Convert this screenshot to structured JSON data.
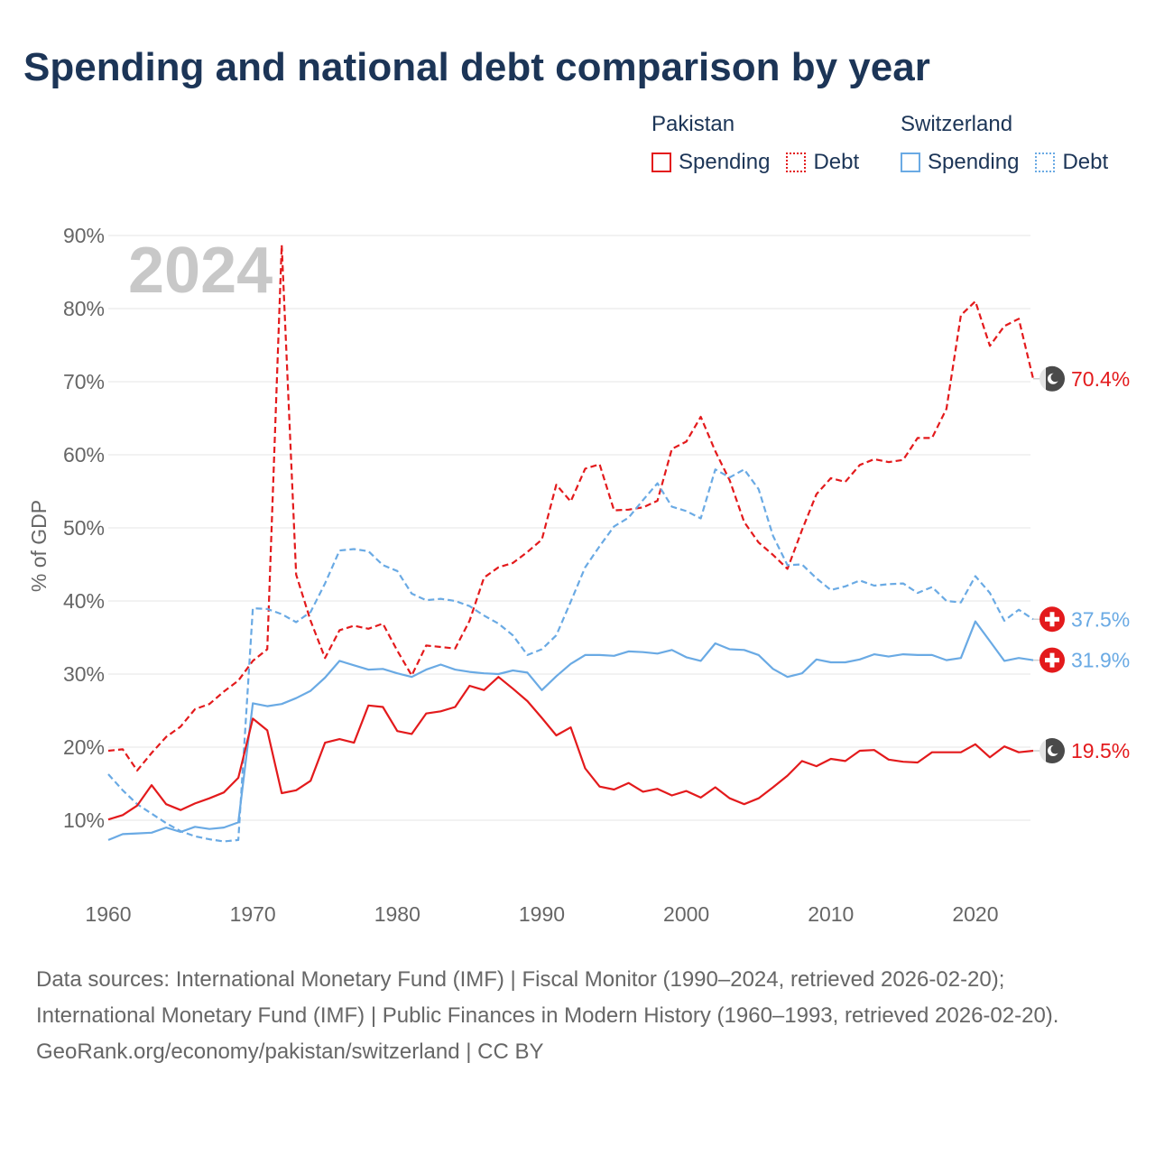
{
  "title": "Spending and national debt comparison by year",
  "legend": {
    "groups": [
      {
        "country": "Pakistan",
        "spending_label": "Spending",
        "debt_label": "Debt"
      },
      {
        "country": "Switzerland",
        "spending_label": "Spending",
        "debt_label": "Debt"
      }
    ]
  },
  "footer": {
    "sources": "Data sources: International Monetary Fund (IMF) | Fiscal Monitor (1990–2024, retrieved 2026-02-20); International Monetary Fund (IMF) | Public Finances in Modern History (1960–1993, retrieved 2026-02-20).",
    "credit": "GeoRank.org/economy/pakistan/switzerland | CC BY"
  },
  "colors": {
    "pakistan": "#e31a1c",
    "switzerland": "#6aaae4",
    "grid": "#e6e6e6",
    "axis_text": "#666666",
    "year_watermark": "#c8c8c8"
  },
  "chart_data": {
    "type": "line",
    "year_label": "2024",
    "ylabel": "% of GDP",
    "xlim": [
      1960,
      2024
    ],
    "ylim": [
      0,
      90
    ],
    "x_ticks": [
      1960,
      1970,
      1980,
      1990,
      2000,
      2010,
      2020
    ],
    "y_ticks": [
      10,
      20,
      30,
      40,
      50,
      60,
      70,
      80,
      90
    ],
    "y_tick_labels": [
      "10%",
      "20%",
      "30%",
      "40%",
      "50%",
      "60%",
      "70%",
      "80%",
      "90%"
    ],
    "x_start": 1960,
    "series": [
      {
        "name": "Pakistan Debt",
        "country": "Pakistan",
        "metric": "Debt",
        "color": "#e31a1c",
        "dashed": true,
        "flag": "pakistan-flag-icon",
        "end_label": "70.4%",
        "values": [
          19.5,
          19.7,
          16.8,
          19.2,
          21.4,
          22.8,
          25.2,
          25.9,
          27.6,
          29.1,
          31.8,
          33.4,
          88.7,
          43.6,
          37.3,
          32.2,
          36,
          36.6,
          36.2,
          36.9,
          33.2,
          29.8,
          33.9,
          33.7,
          33.5,
          37.3,
          43.2,
          44.6,
          45.2,
          46.7,
          48.4,
          55.9,
          53.6,
          58.1,
          58.7,
          52.4,
          52.5,
          52.8,
          53.7,
          60.8,
          61.8,
          65.2,
          60.5,
          56.5,
          50.8,
          48,
          46.3,
          44.4,
          49.7,
          54.6,
          56.8,
          56.3,
          58.6,
          59.4,
          59,
          59.3,
          62.3,
          62.3,
          66.3,
          79.1,
          81,
          74.9,
          77.6,
          78.6,
          70.4
        ]
      },
      {
        "name": "Switzerland Debt",
        "country": "Switzerland",
        "metric": "Debt",
        "color": "#6aaae4",
        "dashed": true,
        "flag": "switzerland-flag-icon",
        "end_label": "37.5%",
        "values": [
          16.3,
          14.1,
          12.2,
          10.9,
          9.6,
          8.5,
          7.8,
          7.4,
          7.1,
          7.3,
          39,
          38.9,
          38.2,
          37.1,
          38.5,
          42.4,
          46.9,
          47.1,
          46.8,
          44.9,
          44.1,
          41,
          40.1,
          40.3,
          40,
          39.3,
          38,
          36.9,
          35.3,
          32.6,
          33.4,
          35.3,
          39.9,
          44.6,
          47.5,
          50.2,
          51.4,
          53.8,
          56.1,
          52.9,
          52.3,
          51.3,
          58,
          56.9,
          58,
          55.3,
          48.9,
          44.9,
          45,
          43.1,
          41.5,
          42,
          42.8,
          42.1,
          42.3,
          42.4,
          41.1,
          41.9,
          40,
          39.8,
          43.4,
          41.1,
          37.3,
          38.8,
          37.5
        ]
      },
      {
        "name": "Switzerland Spending",
        "country": "Switzerland",
        "metric": "Spending",
        "color": "#6aaae4",
        "dashed": false,
        "flag": "switzerland-flag-icon",
        "end_label": "31.9%",
        "values": [
          7.3,
          8.1,
          8.2,
          8.3,
          9,
          8.4,
          9.1,
          8.8,
          9,
          9.7,
          26,
          25.6,
          25.9,
          26.7,
          27.7,
          29.5,
          31.8,
          31.2,
          30.6,
          30.7,
          30.1,
          29.6,
          30.6,
          31.3,
          30.6,
          30.3,
          30.1,
          30,
          30.5,
          30.2,
          27.8,
          29.7,
          31.4,
          32.6,
          32.6,
          32.5,
          33.1,
          33,
          32.8,
          33.3,
          32.3,
          31.8,
          34.2,
          33.4,
          33.3,
          32.6,
          30.7,
          29.6,
          30.1,
          32,
          31.6,
          31.6,
          32,
          32.7,
          32.4,
          32.7,
          32.6,
          32.6,
          31.9,
          32.2,
          37.2,
          34.5,
          31.8,
          32.2,
          31.9
        ]
      },
      {
        "name": "Pakistan Spending",
        "country": "Pakistan",
        "metric": "Spending",
        "color": "#e31a1c",
        "dashed": false,
        "flag": "pakistan-flag-icon",
        "end_label": "19.5%",
        "values": [
          10.1,
          10.7,
          12,
          14.8,
          12.2,
          11.4,
          12.3,
          13,
          13.8,
          15.8,
          23.9,
          22.3,
          13.7,
          14.1,
          15.4,
          20.6,
          21.1,
          20.6,
          25.7,
          25.5,
          22.2,
          21.8,
          24.6,
          24.9,
          25.5,
          28.4,
          27.8,
          29.6,
          28,
          26.3,
          24,
          21.6,
          22.7,
          17.1,
          14.6,
          14.2,
          15.1,
          13.9,
          14.3,
          13.4,
          14,
          13.1,
          14.5,
          13,
          12.2,
          13,
          14.5,
          16.1,
          18.1,
          17.4,
          18.4,
          18.1,
          19.5,
          19.6,
          18.3,
          18,
          17.9,
          19.3,
          19.3,
          19.3,
          20.4,
          18.6,
          20.1,
          19.3,
          19.5
        ]
      }
    ]
  }
}
